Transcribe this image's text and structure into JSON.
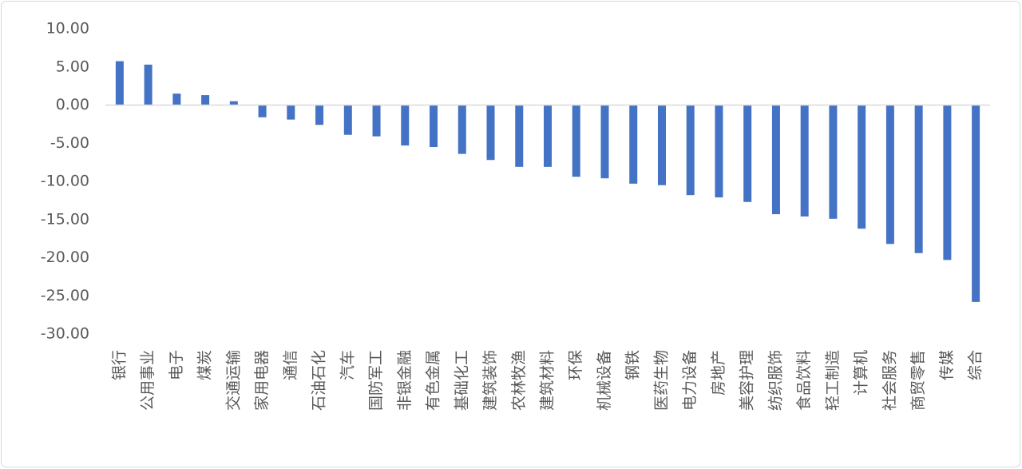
{
  "chart_data": {
    "type": "bar",
    "categories": [
      "银行",
      "公用事业",
      "电子",
      "煤炭",
      "交通运输",
      "家用电器",
      "通信",
      "石油石化",
      "汽车",
      "国防军工",
      "非银金融",
      "有色金属",
      "基础化工",
      "建筑装饰",
      "农林牧渔",
      "建筑材料",
      "环保",
      "机械设备",
      "钢铁",
      "医药生物",
      "电力设备",
      "房地产",
      "美容护理",
      "纺织服饰",
      "食品饮料",
      "轻工制造",
      "计算机",
      "社会服务",
      "商贸零售",
      "传媒",
      "综合"
    ],
    "values": [
      5.75,
      5.3,
      1.5,
      1.3,
      0.5,
      -1.6,
      -1.9,
      -2.6,
      -3.9,
      -4.1,
      -5.3,
      -5.5,
      -6.4,
      -7.2,
      -8.1,
      -8.1,
      -9.4,
      -9.6,
      -10.3,
      -10.5,
      -11.8,
      -12.1,
      -12.7,
      -14.3,
      -14.6,
      -14.9,
      -16.2,
      -18.2,
      -19.4,
      -20.3,
      -25.8
    ],
    "color": "#4472c4",
    "ylim": [
      -30,
      10
    ],
    "yticks": [
      {
        "value": -30,
        "label": "-30.00"
      },
      {
        "value": -25,
        "label": "-25.00"
      },
      {
        "value": -20,
        "label": "-20.00"
      },
      {
        "value": -15,
        "label": "-15.00"
      },
      {
        "value": -10,
        "label": "-10.00"
      },
      {
        "value": -5,
        "label": "-5.00"
      },
      {
        "value": 0,
        "label": "0.00"
      },
      {
        "value": 5,
        "label": "5.00"
      },
      {
        "value": 10,
        "label": "10.00"
      }
    ],
    "grid": false
  }
}
